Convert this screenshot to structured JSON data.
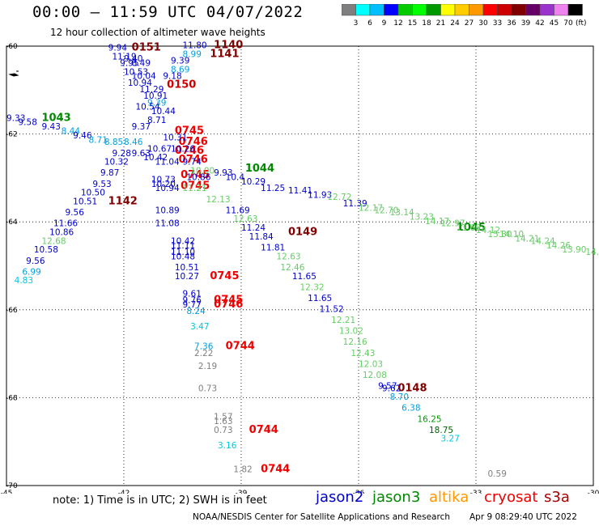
{
  "header": {
    "title": "00:00 — 11:59 UTC 04/07/2022",
    "subtitle": "12 hour collection of altimeter wave heights"
  },
  "colorbar": {
    "colors": [
      "#7f7f7f",
      "#00ffff",
      "#00bfff",
      "#0000ff",
      "#00cc00",
      "#00ff00",
      "#009900",
      "#ffff00",
      "#ffcc00",
      "#ff9900",
      "#ff0000",
      "#cc0000",
      "#800000",
      "#660066",
      "#9933cc",
      "#ee82ee",
      "#000000"
    ],
    "labels": [
      "3",
      "6",
      "9",
      "12",
      "15",
      "18",
      "21",
      "24",
      "27",
      "30",
      "33",
      "36",
      "39",
      "42",
      "45",
      "70"
    ],
    "unit": "(ft)"
  },
  "axes": {
    "x_ticks": [
      "-45",
      "-42",
      "-39",
      "-36",
      "-33",
      "-30"
    ],
    "y_ticks": [
      "-60",
      "-62",
      "-64",
      "-66",
      "-68",
      "-70"
    ]
  },
  "footer": {
    "note": "note:  1) Time is in UTC;  2) SWH is in feet",
    "legend": [
      {
        "name": "jason2",
        "color": "#0000cc"
      },
      {
        "name": "jason3",
        "color": "#008800"
      },
      {
        "name": "altika",
        "color": "#ff9900"
      },
      {
        "name": "cryosat",
        "color": "#ee0000"
      },
      {
        "name": "s3a",
        "color": "#aa0000"
      }
    ],
    "credit": "NOAA/NESDIS Center for Satellite Applications and Research",
    "timestamp": "Apr  9 08:29:40 UTC 2022"
  },
  "map_labels": [
    {
      "t": "0151",
      "lon": -41.8,
      "lat": -60.1,
      "c": "#800000",
      "bold": true
    },
    {
      "t": "1140",
      "lon": -39.7,
      "lat": -60.05,
      "c": "#800000",
      "bold": true
    },
    {
      "t": "1141",
      "lon": -39.8,
      "lat": -60.25,
      "c": "#800000",
      "bold": true
    },
    {
      "t": "1043",
      "lon": -44.1,
      "lat": -61.7,
      "c": "#008800",
      "bold": true
    },
    {
      "t": "0150",
      "lon": -40.9,
      "lat": -60.95,
      "c": "#cc0000",
      "bold": true
    },
    {
      "t": "0745",
      "lon": -40.7,
      "lat": -62.0,
      "c": "#ee0000",
      "bold": true
    },
    {
      "t": "0746",
      "lon": -40.6,
      "lat": -62.25,
      "c": "#ee0000",
      "bold": true
    },
    {
      "t": "0746",
      "lon": -40.7,
      "lat": -62.45,
      "c": "#ee0000",
      "bold": true
    },
    {
      "t": "0746",
      "lon": -40.6,
      "lat": -62.65,
      "c": "#ee0000",
      "bold": true
    },
    {
      "t": "0745",
      "lon": -40.55,
      "lat": -63.0,
      "c": "#ee0000",
      "bold": true
    },
    {
      "t": "0745",
      "lon": -40.55,
      "lat": -63.25,
      "c": "#ee0000",
      "bold": true
    },
    {
      "t": "1044",
      "lon": -38.9,
      "lat": -62.85,
      "c": "#008800",
      "bold": true
    },
    {
      "t": "1142",
      "lon": -42.4,
      "lat": -63.6,
      "c": "#800000",
      "bold": true
    },
    {
      "t": "0149",
      "lon": -37.8,
      "lat": -64.3,
      "c": "#800000",
      "bold": true
    },
    {
      "t": "1045",
      "lon": -33.5,
      "lat": -64.2,
      "c": "#008800",
      "bold": true
    },
    {
      "t": "0745",
      "lon": -39.8,
      "lat": -65.3,
      "c": "#ee0000",
      "bold": true
    },
    {
      "t": "0745",
      "lon": -39.7,
      "lat": -65.85,
      "c": "#ee0000",
      "bold": true
    },
    {
      "t": "0746",
      "lon": -39.7,
      "lat": -65.95,
      "c": "#ee0000",
      "bold": true
    },
    {
      "t": "0744",
      "lon": -39.4,
      "lat": -66.9,
      "c": "#ee0000",
      "bold": true
    },
    {
      "t": "0148",
      "lon": -35.0,
      "lat": -67.85,
      "c": "#800000",
      "bold": true
    },
    {
      "t": "0744",
      "lon": -38.8,
      "lat": -68.8,
      "c": "#ee0000",
      "bold": true
    },
    {
      "t": "0744",
      "lon": -38.5,
      "lat": -69.7,
      "c": "#ee0000",
      "bold": true
    },
    {
      "t": "9.94",
      "lon": -42.4,
      "lat": -60.1,
      "c": "#0000cc"
    },
    {
      "t": "11.19",
      "lon": -42.3,
      "lat": -60.3,
      "c": "#0000cc"
    },
    {
      "t": "11.80",
      "lon": -40.5,
      "lat": -60.05,
      "c": "#0000cc"
    },
    {
      "t": "8.99",
      "lon": -40.5,
      "lat": -60.25,
      "c": "#00a0e0"
    },
    {
      "t": "9.39",
      "lon": -40.8,
      "lat": -60.4,
      "c": "#0000cc"
    },
    {
      "t": "9.40",
      "lon": -42.0,
      "lat": -60.35,
      "c": "#0000cc"
    },
    {
      "t": "9.95",
      "lon": -42.1,
      "lat": -60.45,
      "c": "#0000cc"
    },
    {
      "t": "8.49",
      "lon": -41.8,
      "lat": -60.45,
      "c": "#0000cc"
    },
    {
      "t": "10.53",
      "lon": -42.0,
      "lat": -60.65,
      "c": "#0000cc"
    },
    {
      "t": "8.69",
      "lon": -40.8,
      "lat": -60.6,
      "c": "#00a0e0"
    },
    {
      "t": "10.04",
      "lon": -41.8,
      "lat": -60.75,
      "c": "#0000cc"
    },
    {
      "t": "9.18",
      "lon": -41.0,
      "lat": -60.75,
      "c": "#0000cc"
    },
    {
      "t": "10.94",
      "lon": -41.9,
      "lat": -60.9,
      "c": "#0000cc"
    },
    {
      "t": "11.29",
      "lon": -41.6,
      "lat": -61.05,
      "c": "#0000cc"
    },
    {
      "t": "10.91",
      "lon": -41.5,
      "lat": -61.2,
      "c": "#0000cc"
    },
    {
      "t": "9.39",
      "lon": -41.4,
      "lat": -61.35,
      "c": "#00a0e0"
    },
    {
      "t": "10.54",
      "lon": -41.7,
      "lat": -61.45,
      "c": "#0000cc"
    },
    {
      "t": "10.44",
      "lon": -41.3,
      "lat": -61.55,
      "c": "#0000cc"
    },
    {
      "t": "8.71",
      "lon": -41.4,
      "lat": -61.75,
      "c": "#0000cc"
    },
    {
      "t": "9.37",
      "lon": -41.8,
      "lat": -61.9,
      "c": "#0000cc"
    },
    {
      "t": "10.31",
      "lon": -41.0,
      "lat": -62.15,
      "c": "#0000cc"
    },
    {
      "t": "10.67",
      "lon": -41.4,
      "lat": -62.4,
      "c": "#0000cc"
    },
    {
      "t": "10.26",
      "lon": -40.8,
      "lat": -62.4,
      "c": "#0000cc"
    },
    {
      "t": "10.42",
      "lon": -41.5,
      "lat": -62.6,
      "c": "#0000cc"
    },
    {
      "t": "11.04",
      "lon": -41.2,
      "lat": -62.7,
      "c": "#0000cc"
    },
    {
      "t": "9.74",
      "lon": -40.5,
      "lat": -62.7,
      "c": "#0000cc"
    },
    {
      "t": "9.33",
      "lon": -45.0,
      "lat": -61.7,
      "c": "#0000cc"
    },
    {
      "t": "9.58",
      "lon": -44.7,
      "lat": -61.8,
      "c": "#0000cc"
    },
    {
      "t": "9.43",
      "lon": -44.1,
      "lat": -61.9,
      "c": "#0000cc"
    },
    {
      "t": "8.44",
      "lon": -43.6,
      "lat": -62.0,
      "c": "#00a0e0"
    },
    {
      "t": "9.46",
      "lon": -43.3,
      "lat": -62.1,
      "c": "#0000cc"
    },
    {
      "t": "8.71",
      "lon": -42.9,
      "lat": -62.2,
      "c": "#00a0e0"
    },
    {
      "t": "8.85",
      "lon": -42.5,
      "lat": -62.25,
      "c": "#00a0e0"
    },
    {
      "t": "8.46",
      "lon": -42.0,
      "lat": -62.25,
      "c": "#00a0e0"
    },
    {
      "t": "9.28",
      "lon": -42.3,
      "lat": -62.5,
      "c": "#0000cc"
    },
    {
      "t": "9.63",
      "lon": -41.8,
      "lat": -62.5,
      "c": "#0000cc"
    },
    {
      "t": "10.32",
      "lon": -42.5,
      "lat": -62.7,
      "c": "#0000cc"
    },
    {
      "t": "9.87",
      "lon": -42.6,
      "lat": -62.95,
      "c": "#0000cc"
    },
    {
      "t": "9.53",
      "lon": -42.8,
      "lat": -63.2,
      "c": "#0000cc"
    },
    {
      "t": "10.50",
      "lon": -43.1,
      "lat": -63.4,
      "c": "#0000cc"
    },
    {
      "t": "10.51",
      "lon": -43.3,
      "lat": -63.6,
      "c": "#0000cc"
    },
    {
      "t": "9.56",
      "lon": -43.5,
      "lat": -63.85,
      "c": "#0000cc"
    },
    {
      "t": "11.66",
      "lon": -43.8,
      "lat": -64.1,
      "c": "#0000cc"
    },
    {
      "t": "10.86",
      "lon": -43.9,
      "lat": -64.3,
      "c": "#0000cc"
    },
    {
      "t": "12.68",
      "lon": -44.1,
      "lat": -64.5,
      "c": "#66cc66"
    },
    {
      "t": "10.58",
      "lon": -44.3,
      "lat": -64.7,
      "c": "#0000cc"
    },
    {
      "t": "9.56",
      "lon": -44.5,
      "lat": -64.95,
      "c": "#0000cc"
    },
    {
      "t": "6.99",
      "lon": -44.6,
      "lat": -65.2,
      "c": "#00a0e0"
    },
    {
      "t": "4.83",
      "lon": -44.8,
      "lat": -65.4,
      "c": "#00c8e0"
    },
    {
      "t": "10.73",
      "lon": -41.3,
      "lat": -63.1,
      "c": "#0000cc"
    },
    {
      "t": "10.20",
      "lon": -41.3,
      "lat": -63.2,
      "c": "#0000cc"
    },
    {
      "t": "10.94",
      "lon": -41.2,
      "lat": -63.3,
      "c": "#0000cc"
    },
    {
      "t": "10.00",
      "lon": -40.3,
      "lat": -62.9,
      "c": "#66cc66"
    },
    {
      "t": "9.93",
      "lon": -39.7,
      "lat": -62.95,
      "c": "#0000cc"
    },
    {
      "t": "10.86",
      "lon": -40.4,
      "lat": -63.05,
      "c": "#0000cc"
    },
    {
      "t": "10.4",
      "lon": -39.4,
      "lat": -63.05,
      "c": "#0000cc"
    },
    {
      "t": "10.29",
      "lon": -39.0,
      "lat": -63.15,
      "c": "#0000cc"
    },
    {
      "t": "11.25",
      "lon": -38.5,
      "lat": -63.3,
      "c": "#0000cc"
    },
    {
      "t": "11.41",
      "lon": -37.8,
      "lat": -63.35,
      "c": "#0000cc"
    },
    {
      "t": "11.93",
      "lon": -37.3,
      "lat": -63.45,
      "c": "#0000cc"
    },
    {
      "t": "12.72",
      "lon": -36.8,
      "lat": -63.5,
      "c": "#66cc66"
    },
    {
      "t": "11.39",
      "lon": -36.4,
      "lat": -63.65,
      "c": "#0000cc"
    },
    {
      "t": "12.17",
      "lon": -36.0,
      "lat": -63.75,
      "c": "#66cc66"
    },
    {
      "t": "12.70",
      "lon": -35.6,
      "lat": -63.8,
      "c": "#66cc66"
    },
    {
      "t": "13.14",
      "lon": -35.2,
      "lat": -63.85,
      "c": "#66cc66"
    },
    {
      "t": "13.23",
      "lon": -34.7,
      "lat": -63.95,
      "c": "#66cc66"
    },
    {
      "t": "14.17",
      "lon": -34.3,
      "lat": -64.05,
      "c": "#66cc66"
    },
    {
      "t": "12.97",
      "lon": -33.9,
      "lat": -64.1,
      "c": "#66cc66"
    },
    {
      "t": "13.60",
      "lon": -33.5,
      "lat": -64.2,
      "c": "#66cc66"
    },
    {
      "t": "14.12",
      "lon": -33.0,
      "lat": -64.25,
      "c": "#66cc66"
    },
    {
      "t": "15.30",
      "lon": -32.7,
      "lat": -64.35,
      "c": "#66cc66"
    },
    {
      "t": "14.10",
      "lon": -32.4,
      "lat": -64.35,
      "c": "#66cc66"
    },
    {
      "t": "14.21",
      "lon": -32.0,
      "lat": -64.45,
      "c": "#66cc66"
    },
    {
      "t": "14.24",
      "lon": -31.6,
      "lat": -64.5,
      "c": "#66cc66"
    },
    {
      "t": "14.26",
      "lon": -31.2,
      "lat": -64.6,
      "c": "#66cc66"
    },
    {
      "t": "13.90",
      "lon": -30.8,
      "lat": -64.7,
      "c": "#66cc66"
    },
    {
      "t": "14.",
      "lon": -30.2,
      "lat": -64.75,
      "c": "#66cc66"
    },
    {
      "t": "10.89",
      "lon": -41.2,
      "lat": -63.8,
      "c": "#0000cc"
    },
    {
      "t": "11.08",
      "lon": -41.2,
      "lat": -64.1,
      "c": "#0000cc"
    },
    {
      "t": "11.21",
      "lon": -40.5,
      "lat": -63.3,
      "c": "#66cc66"
    },
    {
      "t": "12.13",
      "lon": -39.9,
      "lat": -63.55,
      "c": "#66cc66"
    },
    {
      "t": "11.69",
      "lon": -39.4,
      "lat": -63.8,
      "c": "#0000cc"
    },
    {
      "t": "12.63",
      "lon": -39.2,
      "lat": -64.0,
      "c": "#66cc66"
    },
    {
      "t": "11.24",
      "lon": -39.0,
      "lat": -64.2,
      "c": "#0000cc"
    },
    {
      "t": "11.84",
      "lon": -38.8,
      "lat": -64.4,
      "c": "#0000cc"
    },
    {
      "t": "11.81",
      "lon": -38.5,
      "lat": -64.65,
      "c": "#0000cc"
    },
    {
      "t": "12.63",
      "lon": -38.1,
      "lat": -64.85,
      "c": "#66cc66"
    },
    {
      "t": "12.46",
      "lon": -38.0,
      "lat": -65.1,
      "c": "#66cc66"
    },
    {
      "t": "11.65",
      "lon": -37.7,
      "lat": -65.3,
      "c": "#0000cc"
    },
    {
      "t": "12.32",
      "lon": -37.5,
      "lat": -65.55,
      "c": "#66cc66"
    },
    {
      "t": "11.65",
      "lon": -37.3,
      "lat": -65.8,
      "c": "#0000cc"
    },
    {
      "t": "11.52",
      "lon": -37.0,
      "lat": -66.05,
      "c": "#0000cc"
    },
    {
      "t": "12.21",
      "lon": -36.7,
      "lat": -66.3,
      "c": "#66cc66"
    },
    {
      "t": "13.02",
      "lon": -36.5,
      "lat": -66.55,
      "c": "#66cc66"
    },
    {
      "t": "12.16",
      "lon": -36.4,
      "lat": -66.8,
      "c": "#66cc66"
    },
    {
      "t": "12.43",
      "lon": -36.2,
      "lat": -67.05,
      "c": "#66cc66"
    },
    {
      "t": "12.03",
      "lon": -36.0,
      "lat": -67.3,
      "c": "#66cc66"
    },
    {
      "t": "12.08",
      "lon": -35.9,
      "lat": -67.55,
      "c": "#66cc66"
    },
    {
      "t": "9.57",
      "lon": -35.5,
      "lat": -67.8,
      "c": "#0000cc"
    },
    {
      "t": "9.62",
      "lon": -35.4,
      "lat": -67.85,
      "c": "#0000cc"
    },
    {
      "t": "8.70",
      "lon": -35.2,
      "lat": -68.05,
      "c": "#00a0e0"
    },
    {
      "t": "6.38",
      "lon": -34.9,
      "lat": -68.3,
      "c": "#00a0e0"
    },
    {
      "t": "16.25",
      "lon": -34.5,
      "lat": -68.55,
      "c": "#009900"
    },
    {
      "t": "18.75",
      "lon": -34.2,
      "lat": -68.8,
      "c": "#006600"
    },
    {
      "t": "3.27",
      "lon": -33.9,
      "lat": -69.0,
      "c": "#00c8e0"
    },
    {
      "t": "10.42",
      "lon": -40.8,
      "lat": -64.5,
      "c": "#0000cc"
    },
    {
      "t": "11.11",
      "lon": -40.8,
      "lat": -64.6,
      "c": "#0000cc"
    },
    {
      "t": "11.10",
      "lon": -40.8,
      "lat": -64.75,
      "c": "#0000cc"
    },
    {
      "t": "10.48",
      "lon": -40.8,
      "lat": -64.85,
      "c": "#0000cc"
    },
    {
      "t": "10.51",
      "lon": -40.7,
      "lat": -65.1,
      "c": "#0000cc"
    },
    {
      "t": "10.27",
      "lon": -40.7,
      "lat": -65.3,
      "c": "#0000cc"
    },
    {
      "t": "9.61",
      "lon": -40.5,
      "lat": -65.7,
      "c": "#0000cc"
    },
    {
      "t": "9.76",
      "lon": -40.5,
      "lat": -65.85,
      "c": "#0000cc"
    },
    {
      "t": "9.77",
      "lon": -40.5,
      "lat": -65.95,
      "c": "#0000cc"
    },
    {
      "t": "8.24",
      "lon": -40.4,
      "lat": -66.1,
      "c": "#00a0e0"
    },
    {
      "t": "3.47",
      "lon": -40.3,
      "lat": -66.45,
      "c": "#00c8e0"
    },
    {
      "t": "7.36",
      "lon": -40.2,
      "lat": -66.9,
      "c": "#00a0e0"
    },
    {
      "t": "2.22",
      "lon": -40.2,
      "lat": -67.05,
      "c": "#7f7f7f"
    },
    {
      "t": "2.19",
      "lon": -40.1,
      "lat": -67.35,
      "c": "#7f7f7f"
    },
    {
      "t": "0.73",
      "lon": -40.1,
      "lat": -67.85,
      "c": "#7f7f7f"
    },
    {
      "t": "1.57",
      "lon": -39.7,
      "lat": -68.5,
      "c": "#7f7f7f"
    },
    {
      "t": "1.63",
      "lon": -39.7,
      "lat": -68.6,
      "c": "#7f7f7f"
    },
    {
      "t": "0.73",
      "lon": -39.7,
      "lat": -68.8,
      "c": "#7f7f7f"
    },
    {
      "t": "3.16",
      "lon": -39.6,
      "lat": -69.15,
      "c": "#00c8e0"
    },
    {
      "t": "1.82",
      "lon": -39.2,
      "lat": -69.7,
      "c": "#7f7f7f"
    },
    {
      "t": "0.59",
      "lon": -32.7,
      "lat": -69.8,
      "c": "#7f7f7f"
    }
  ]
}
